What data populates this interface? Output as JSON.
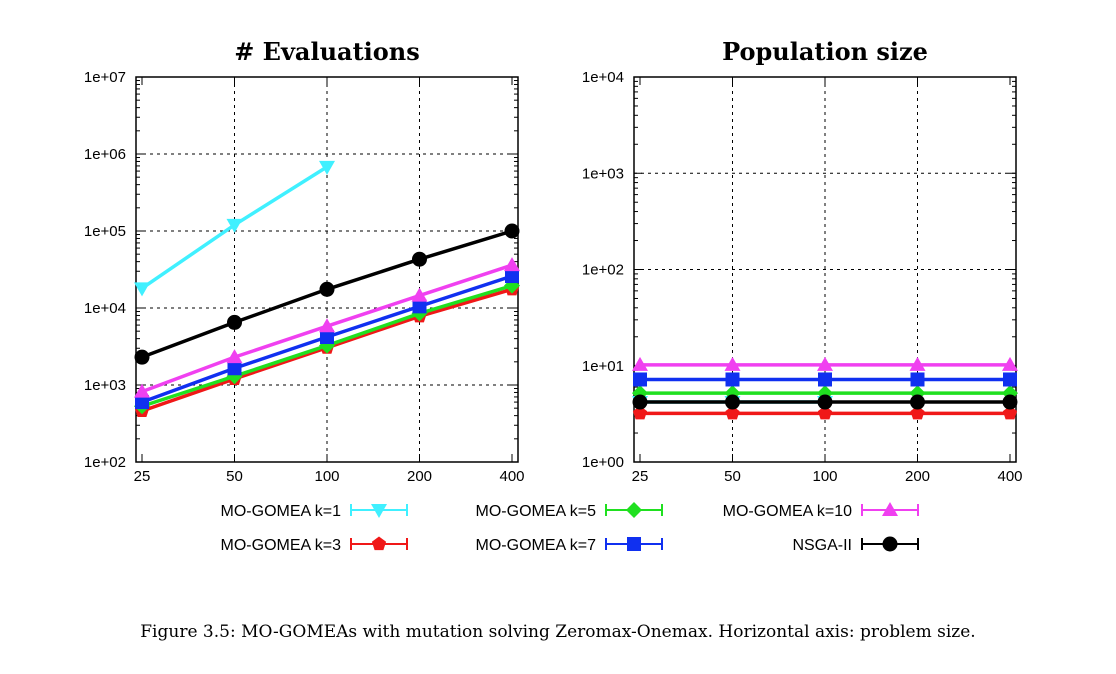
{
  "chart_data": [
    {
      "type": "line",
      "title": "# Evaluations",
      "xscale": "log",
      "yscale": "log",
      "x": [
        25,
        50,
        100,
        200,
        400
      ],
      "xticks": [
        "25",
        "50",
        "100",
        "200",
        "400"
      ],
      "ylim": [
        100,
        10000000
      ],
      "yticks": [
        100,
        1000,
        10000,
        100000,
        1000000,
        10000000
      ],
      "yticklabels": [
        "1e+02",
        "1e+03",
        "1e+04",
        "1e+05",
        "1e+06",
        "1e+07"
      ],
      "grid": true,
      "series": [
        {
          "name": "MO-GOMEA k=1",
          "color": "#40f0ff",
          "marker": "triangle-down",
          "values": [
            18000,
            120000,
            680000,
            null,
            null
          ]
        },
        {
          "name": "MO-GOMEA k=3",
          "color": "#f01818",
          "marker": "pentagon",
          "values": [
            460,
            1200,
            3050,
            7800,
            17500
          ]
        },
        {
          "name": "MO-GOMEA k=5",
          "color": "#20e020",
          "marker": "diamond",
          "values": [
            530,
            1300,
            3250,
            8500,
            19500
          ]
        },
        {
          "name": "MO-GOMEA k=7",
          "color": "#1030f0",
          "marker": "square",
          "values": [
            600,
            1650,
            4200,
            10500,
            26000
          ]
        },
        {
          "name": "MO-GOMEA k=10",
          "color": "#f040f0",
          "marker": "triangle-up",
          "values": [
            820,
            2300,
            5800,
            14500,
            36000
          ]
        },
        {
          "name": "NSGA-II",
          "color": "#000000",
          "marker": "circle",
          "values": [
            2300,
            6500,
            17500,
            43000,
            100000
          ]
        }
      ]
    },
    {
      "type": "line",
      "title": "Population size",
      "xscale": "log",
      "yscale": "log",
      "x": [
        25,
        50,
        100,
        200,
        400
      ],
      "xticks": [
        "25",
        "50",
        "100",
        "200",
        "400"
      ],
      "ylim": [
        1,
        10000
      ],
      "yticks": [
        1,
        10,
        100,
        1000,
        10000
      ],
      "yticklabels": [
        "1e+00",
        "1e+01",
        "1e+02",
        "1e+03",
        "1e+04"
      ],
      "grid": true,
      "series": [
        {
          "name": "MO-GOMEA k=1",
          "color": "#40f0ff",
          "marker": "triangle-down",
          "values": [
            4.2,
            4.2,
            4.2,
            null,
            null
          ]
        },
        {
          "name": "MO-GOMEA k=3",
          "color": "#f01818",
          "marker": "pentagon",
          "values": [
            3.2,
            3.2,
            3.2,
            3.2,
            3.2
          ]
        },
        {
          "name": "MO-GOMEA k=5",
          "color": "#20e020",
          "marker": "diamond",
          "values": [
            5.2,
            5.2,
            5.2,
            5.2,
            5.2
          ]
        },
        {
          "name": "MO-GOMEA k=7",
          "color": "#1030f0",
          "marker": "square",
          "values": [
            7.2,
            7.2,
            7.2,
            7.2,
            7.2
          ]
        },
        {
          "name": "MO-GOMEA k=10",
          "color": "#f040f0",
          "marker": "triangle-up",
          "values": [
            10.2,
            10.2,
            10.2,
            10.2,
            10.2
          ]
        },
        {
          "name": "NSGA-II",
          "color": "#000000",
          "marker": "circle",
          "values": [
            4.2,
            4.2,
            4.2,
            4.2,
            4.2
          ]
        }
      ]
    }
  ],
  "legend": [
    {
      "label": "MO-GOMEA k=1",
      "color": "#40f0ff",
      "marker": "triangle-down"
    },
    {
      "label": "MO-GOMEA k=5",
      "color": "#20e020",
      "marker": "diamond"
    },
    {
      "label": "MO-GOMEA k=10",
      "color": "#f040f0",
      "marker": "triangle-up"
    },
    {
      "label": "MO-GOMEA k=3",
      "color": "#f01818",
      "marker": "pentagon"
    },
    {
      "label": "MO-GOMEA k=7",
      "color": "#1030f0",
      "marker": "square"
    },
    {
      "label": "NSGA-II",
      "color": "#000000",
      "marker": "circle"
    }
  ],
  "caption": "Figure 3.5: MO-GOMEAs with mutation solving Zeromax-Onemax. Horizontal axis: problem size."
}
